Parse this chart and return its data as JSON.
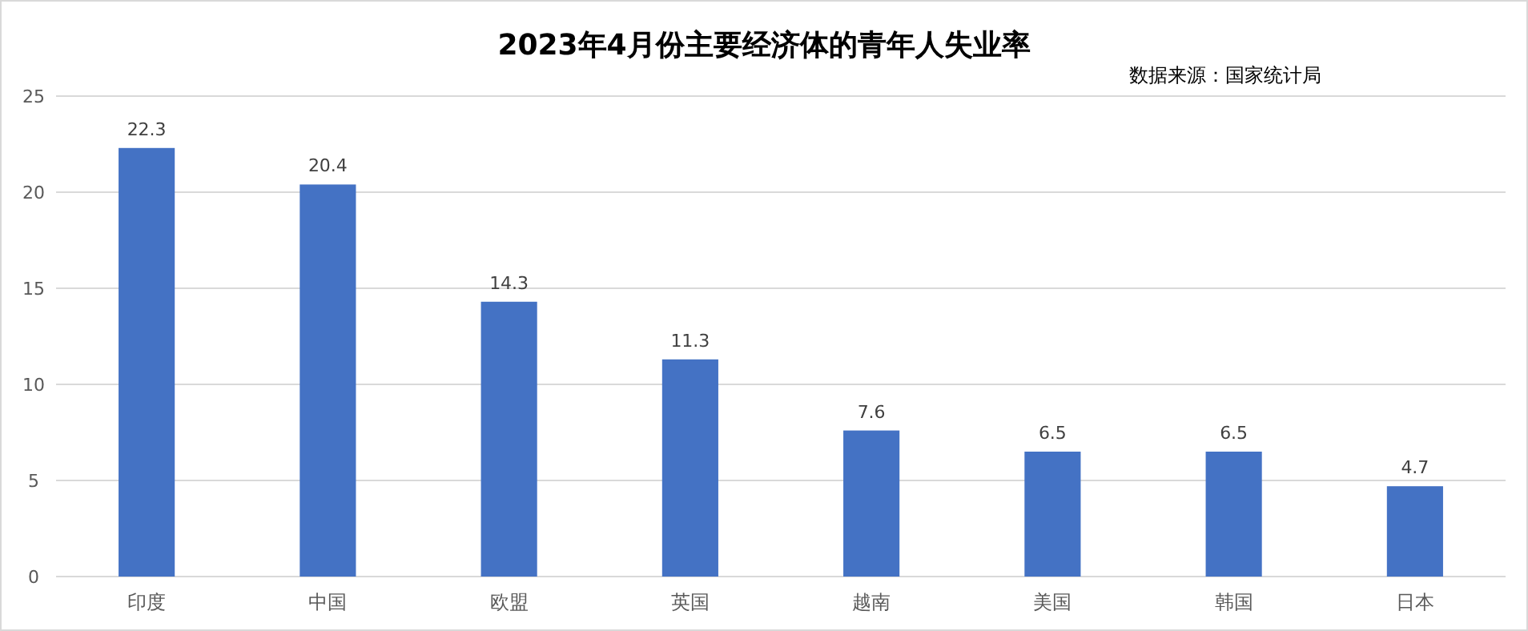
{
  "chart_data": {
    "type": "bar",
    "title": "2023年4月份主要经济体的青年人失业率",
    "categories": [
      "印度",
      "中国",
      "欧盟",
      "英国",
      "越南",
      "美国",
      "韩国",
      "日本"
    ],
    "values": [
      22.3,
      20.4,
      14.3,
      11.3,
      7.6,
      6.5,
      6.5,
      4.7
    ],
    "color": "#4472c4",
    "ylim": [
      0,
      25
    ],
    "yticks": [
      0,
      5,
      10,
      15,
      20,
      25
    ],
    "grid": "y",
    "data_labels": true,
    "annotations": [
      "数据来源：国家统计局"
    ]
  }
}
